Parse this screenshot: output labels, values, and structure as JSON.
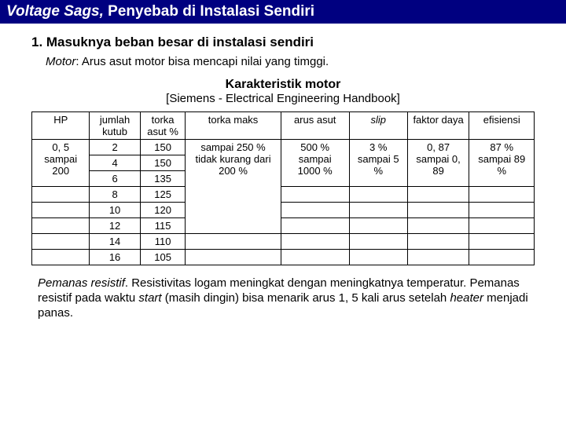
{
  "header": {
    "title_italic": "Voltage Sags,",
    "title_rest": " Penyebab di Instalasi Sendiri"
  },
  "section": {
    "h1": "1. Masuknya beban besar di instalasi sendiri",
    "motor_label": "Motor",
    "motor_text": ": Arus asut motor bisa mencapi nilai yang timggi.",
    "karakteristik": "Karakteristik motor",
    "source": "[Siemens - Electrical Engineering Handbook]"
  },
  "table": {
    "headers": [
      "HP",
      "jumlah kutub",
      "torka asut %",
      "torka maks",
      "arus asut",
      "slip",
      "faktor daya",
      "efisiensi"
    ],
    "hp": "0, 5 sampai 200",
    "kutub": [
      "2",
      "4",
      "6",
      "8",
      "10",
      "12",
      "14",
      "16"
    ],
    "torka_asut": [
      "150",
      "150",
      "135",
      "125",
      "120",
      "115",
      "110",
      "105"
    ],
    "torka_maks": "sampai 250 % tidak kurang dari 200 %",
    "arus_asut": "500 % sampai 1000 %",
    "slip_val": "3 % sampai 5 %",
    "faktor_daya": "0, 87 sampai 0, 89",
    "efisiensi": "87 % sampai 89 %"
  },
  "paragraph": {
    "lead": "Pemanas resistif",
    "body1": ". Resistivitas logam meningkat dengan meningkatnya temperatur. Pemanas resistif pada waktu ",
    "start": "start",
    "body2": " (masih dingin) bisa menarik arus 1, 5 kali arus setelah ",
    "heater": "heater",
    "body3": " menjadi panas."
  }
}
